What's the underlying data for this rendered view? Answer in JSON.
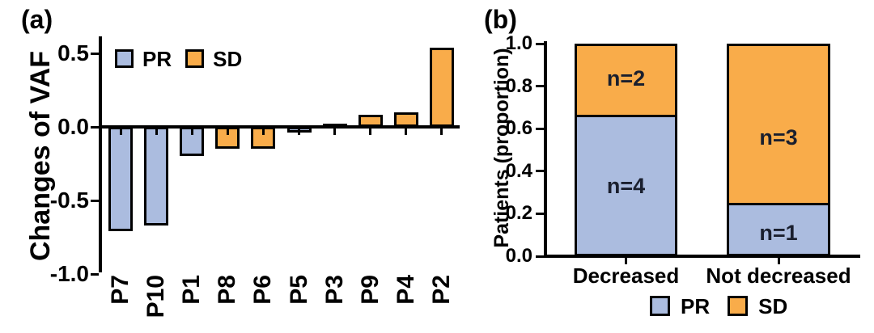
{
  "figure": {
    "background": "#ffffff",
    "colors": {
      "pr_fill": "#ABBCDF",
      "sd_fill": "#F9AC4A",
      "outline": "#000000",
      "annotation_text": "#1A1F2E"
    }
  },
  "panels": {
    "a": {
      "label": "(a)"
    },
    "b": {
      "label": "(b)"
    }
  },
  "chart_data": [
    {
      "id": "a",
      "type": "bar",
      "title": "",
      "xlabel": "",
      "ylabel": "Changes of VAF",
      "categories": [
        "P7",
        "P10",
        "P1",
        "P8",
        "P6",
        "P5",
        "P3",
        "P9",
        "P4",
        "P2"
      ],
      "values": [
        -0.71,
        -0.67,
        -0.2,
        -0.15,
        -0.15,
        -0.04,
        0.02,
        0.08,
        0.1,
        0.54
      ],
      "groups": [
        "PR",
        "PR",
        "PR",
        "SD",
        "SD",
        "PR",
        "PR",
        "SD",
        "SD",
        "SD"
      ],
      "ylim": [
        -1.0,
        0.55
      ],
      "yticks": [
        0.5,
        0.0,
        -0.5,
        -1.0
      ],
      "ytick_labels": [
        "0.5",
        "0.0",
        "-0.5",
        "-1.0"
      ],
      "grid": "off",
      "legend": [
        "PR",
        "SD"
      ],
      "legend_position": "top-left-inside",
      "x_tick_label_rotation_deg": 90
    },
    {
      "id": "b",
      "type": "stacked-bar",
      "title": "",
      "xlabel": "",
      "ylabel": "Patients (proportion)",
      "categories": [
        "Decreased",
        "Not decreased"
      ],
      "series": [
        {
          "name": "PR",
          "values": [
            0.667,
            0.25
          ],
          "labels": [
            "n=4",
            "n=1"
          ],
          "label_at": [
            0.33,
            0.11
          ]
        },
        {
          "name": "SD",
          "values": [
            0.333,
            0.75
          ],
          "labels": [
            "n=2",
            "n=3"
          ],
          "label_at": [
            0.835,
            0.56
          ]
        }
      ],
      "ylim": [
        0.0,
        1.0
      ],
      "yticks": [
        0.0,
        0.2,
        0.4,
        0.6,
        0.8,
        1.0
      ],
      "ytick_labels": [
        "0.0",
        "0.2",
        "0.4",
        "0.6",
        "0.8",
        "1.0"
      ],
      "grid": "off",
      "legend": [
        "PR",
        "SD"
      ],
      "legend_position": "bottom"
    }
  ]
}
